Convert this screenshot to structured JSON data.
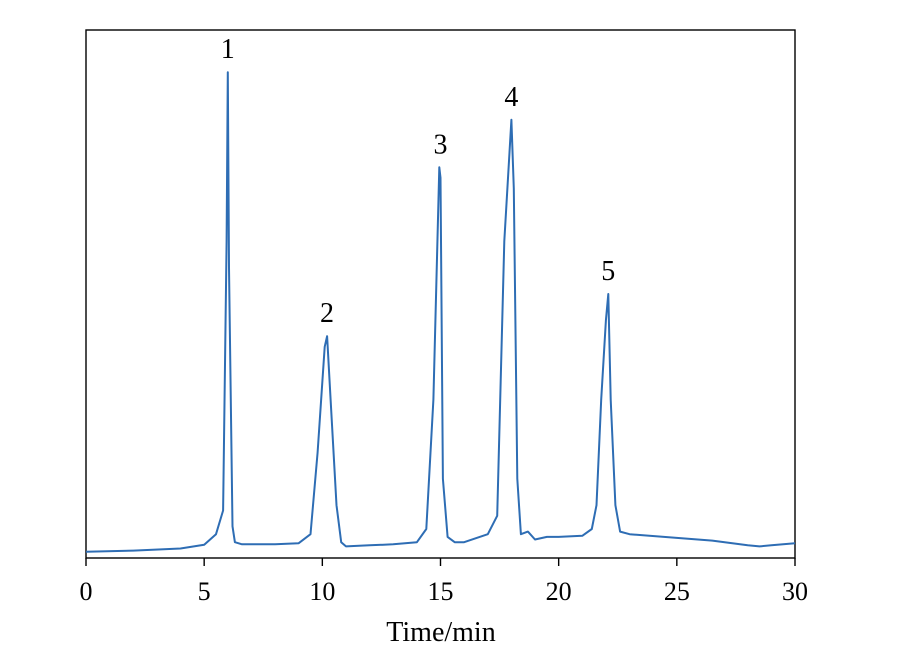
{
  "chart_data": {
    "type": "line",
    "title": "",
    "xlabel": "Time/min",
    "ylabel": "",
    "xlim": [
      0,
      30
    ],
    "ylim": [
      0,
      1.0
    ],
    "grid": false,
    "x_ticks": [
      0,
      5,
      10,
      15,
      20,
      25,
      30
    ],
    "x_tick_labels": [
      "0",
      "5",
      "10",
      "15",
      "20",
      "25",
      "30"
    ],
    "line_color": "#2e6db4",
    "series": [
      {
        "x": [
          0,
          2,
          4,
          5,
          5.5,
          5.8,
          5.95,
          6.0,
          6.05,
          6.2,
          6.3,
          6.6,
          7,
          8,
          9,
          9.5,
          9.8,
          10.1,
          10.2,
          10.35,
          10.6,
          10.8,
          11,
          12,
          13,
          14,
          14.4,
          14.7,
          14.95,
          15.0,
          15.1,
          15.3,
          15.6,
          16,
          17,
          17.4,
          17.7,
          18.0,
          18.1,
          18.25,
          18.4,
          18.7,
          19,
          19.5,
          20,
          21,
          21.4,
          21.6,
          21.8,
          22.0,
          22.1,
          22.2,
          22.4,
          22.6,
          23,
          25,
          26.5,
          28,
          28.5,
          29,
          30
        ],
        "values": [
          0.012,
          0.014,
          0.018,
          0.025,
          0.045,
          0.09,
          0.6,
          0.92,
          0.55,
          0.06,
          0.03,
          0.026,
          0.026,
          0.026,
          0.028,
          0.045,
          0.2,
          0.4,
          0.42,
          0.3,
          0.1,
          0.03,
          0.022,
          0.024,
          0.026,
          0.03,
          0.055,
          0.3,
          0.74,
          0.72,
          0.15,
          0.04,
          0.03,
          0.03,
          0.045,
          0.08,
          0.6,
          0.83,
          0.7,
          0.15,
          0.045,
          0.05,
          0.035,
          0.04,
          0.04,
          0.042,
          0.055,
          0.1,
          0.3,
          0.45,
          0.5,
          0.3,
          0.1,
          0.05,
          0.045,
          0.038,
          0.033,
          0.024,
          0.022,
          0.024,
          0.028
        ]
      }
    ],
    "annotations": [
      {
        "text": "1",
        "x": 6.0,
        "y": 0.92
      },
      {
        "text": "2",
        "x": 10.2,
        "y": 0.42
      },
      {
        "text": "3",
        "x": 15.0,
        "y": 0.74
      },
      {
        "text": "4",
        "x": 18.0,
        "y": 0.83
      },
      {
        "text": "5",
        "x": 22.1,
        "y": 0.5
      }
    ]
  }
}
